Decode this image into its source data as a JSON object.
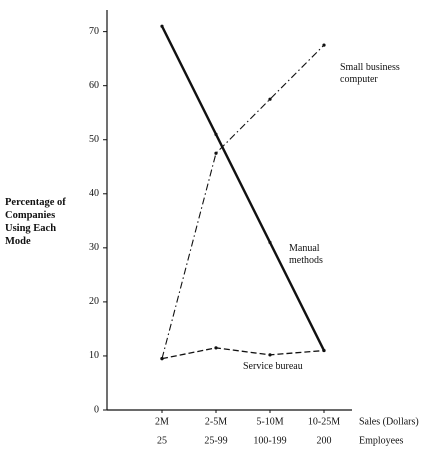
{
  "chart_data": {
    "type": "line",
    "ylabel": "Percentage of Companies Using Each Mode",
    "categories": [
      "2M",
      "2-5M",
      "5-10M",
      "10-25M"
    ],
    "categories_secondary": [
      "25",
      "25-99",
      "100-199",
      "200"
    ],
    "xlabel": "Sales (Dollars)",
    "xlabel_secondary": "Employees",
    "ylim": [
      0,
      74
    ],
    "yticks": [
      0,
      10,
      20,
      30,
      40,
      50,
      60,
      70
    ],
    "grid": false,
    "series": [
      {
        "name": "Manual methods",
        "color": "#111111",
        "dash": "solid",
        "values": [
          71,
          51,
          31,
          11
        ]
      },
      {
        "name": "Small business computer",
        "color": "#111111",
        "dash": "dashdot",
        "values": [
          9.5,
          47.5,
          57.5,
          67.5
        ]
      },
      {
        "name": "Service bureau",
        "color": "#111111",
        "dash": "dashed",
        "values": [
          9.5,
          11.5,
          10.2,
          11
        ]
      }
    ]
  }
}
